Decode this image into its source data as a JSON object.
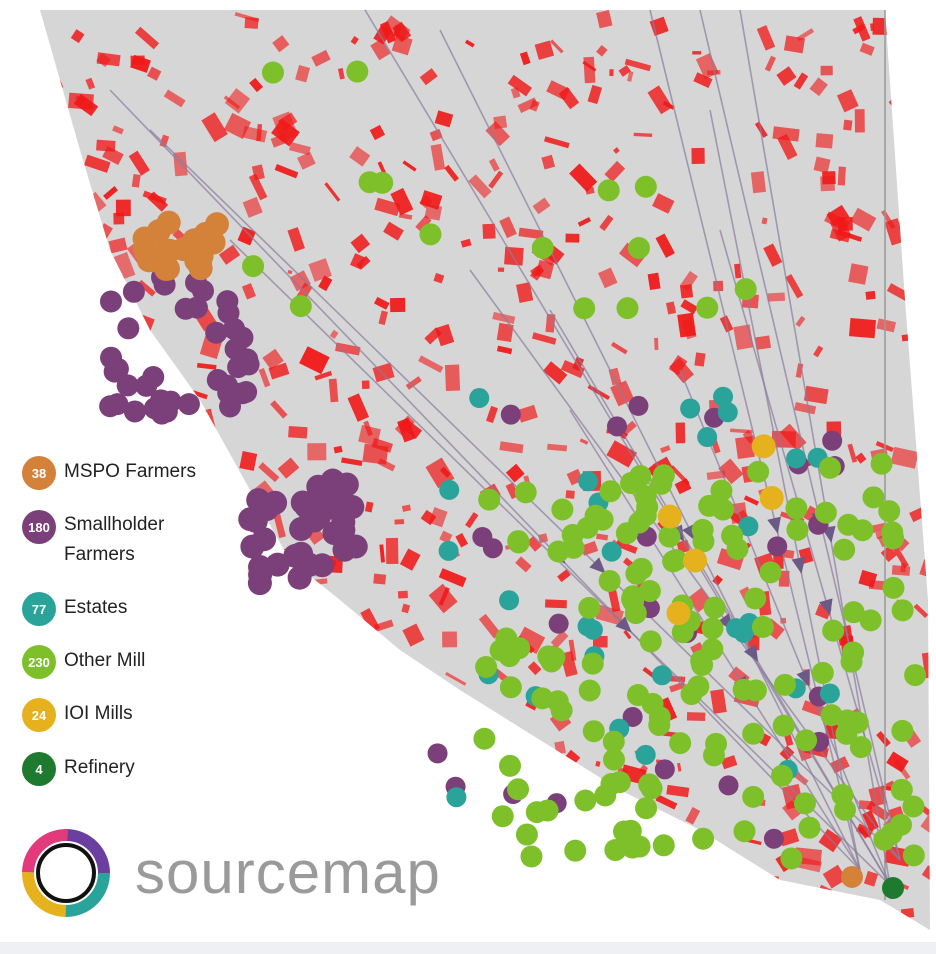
{
  "legend": [
    {
      "count": 38,
      "label": "MSPO Farmers",
      "color": "#d4813a"
    },
    {
      "count": 180,
      "label": "Smallholder Farmers",
      "color": "#7b3f7a"
    },
    {
      "count": 77,
      "label": "Estates",
      "color": "#2aa39a"
    },
    {
      "count": 230,
      "label": "Other Mill",
      "color": "#7ec02a"
    },
    {
      "count": 24,
      "label": "IOI Mills",
      "color": "#e5b21d"
    },
    {
      "count": 4,
      "label": "Refinery",
      "color": "#1e7a2e"
    }
  ],
  "logo": {
    "text": "sourcemap"
  }
}
